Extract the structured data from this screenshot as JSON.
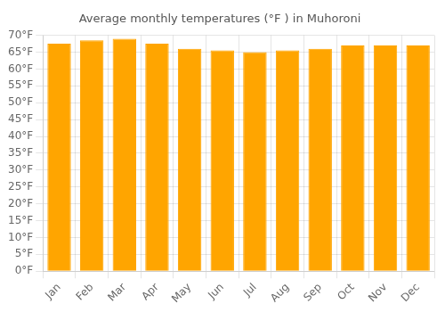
{
  "chart_data": {
    "type": "bar",
    "title": "Average monthly temperatures (°F ) in Muhoroni",
    "categories": [
      "Jan",
      "Feb",
      "Mar",
      "Apr",
      "May",
      "Jun",
      "Jul",
      "Aug",
      "Sep",
      "Oct",
      "Nov",
      "Dec"
    ],
    "values": [
      67.5,
      68.5,
      69.0,
      67.5,
      66.0,
      65.5,
      65.0,
      65.5,
      66.0,
      67.0,
      67.0,
      67.0
    ],
    "color": "#FFA500",
    "ylim": [
      0,
      70
    ],
    "yticks": [
      {
        "value": 0,
        "label": "0°F"
      },
      {
        "value": 5,
        "label": "5°F"
      },
      {
        "value": 10,
        "label": "10°F"
      },
      {
        "value": 15,
        "label": "15°F"
      },
      {
        "value": 20,
        "label": "20°F"
      },
      {
        "value": 25,
        "label": "25°F"
      },
      {
        "value": 30,
        "label": "30°F"
      },
      {
        "value": 35,
        "label": "35°F"
      },
      {
        "value": 40,
        "label": "40°F"
      },
      {
        "value": 45,
        "label": "45°F"
      },
      {
        "value": 50,
        "label": "50°F"
      },
      {
        "value": 55,
        "label": "55°F"
      },
      {
        "value": 60,
        "label": "60°F"
      },
      {
        "value": 65,
        "label": "65°F"
      },
      {
        "value": 70,
        "label": "70°F"
      }
    ],
    "grid": true
  }
}
